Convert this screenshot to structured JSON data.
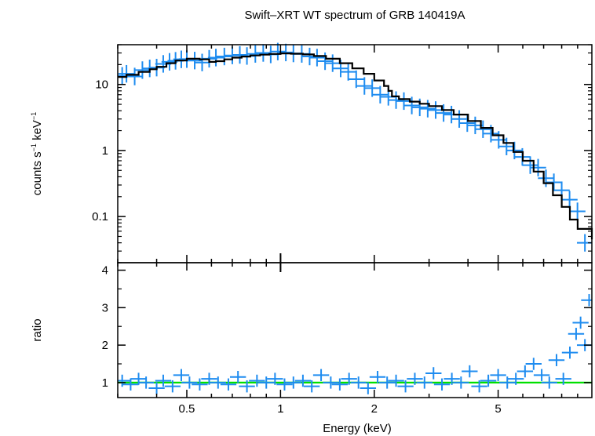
{
  "chart_data": [
    {
      "panel": "spectrum",
      "type": "scatter",
      "title": "Swift–XRT WT spectrum of GRB 140419A",
      "xlabel": "Energy (keV)",
      "ylabel_parts": [
        "counts s",
        "−1",
        " keV",
        "−1"
      ],
      "xscale": "log",
      "yscale": "log",
      "xlim": [
        0.3,
        10
      ],
      "ylim": [
        0.02,
        40
      ],
      "yticks": [
        {
          "value": 10,
          "label": "10"
        },
        {
          "value": 1,
          "label": "1"
        },
        {
          "value": 0.1,
          "label": "0.1"
        }
      ],
      "data_color": "#1e8cf0",
      "model_color": "#000000",
      "series": [
        {
          "role": "data",
          "x": [
            0.31,
            0.32,
            0.34,
            0.36,
            0.38,
            0.4,
            0.42,
            0.44,
            0.46,
            0.48,
            0.5,
            0.53,
            0.56,
            0.59,
            0.62,
            0.66,
            0.7,
            0.74,
            0.78,
            0.83,
            0.88,
            0.93,
            0.98,
            1.04,
            1.1,
            1.17,
            1.24,
            1.31,
            1.39,
            1.47,
            1.56,
            1.65,
            1.75,
            1.86,
            1.97,
            2.09,
            2.22,
            2.35,
            2.49,
            2.64,
            2.8,
            2.97,
            3.15,
            3.34,
            3.54,
            3.75,
            3.98,
            4.22,
            4.47,
            4.74,
            5.02,
            5.32,
            5.64,
            5.98,
            6.34,
            6.72,
            7.12,
            7.55,
            8.0,
            8.48,
            8.99,
            9.5
          ],
          "y": [
            13.5,
            14.5,
            13.2,
            16.5,
            17.5,
            18.0,
            20.5,
            22.0,
            22.8,
            24.0,
            24.2,
            23.0,
            21.5,
            24.5,
            25.5,
            26.5,
            27.5,
            28.0,
            27.0,
            29.0,
            30.0,
            28.5,
            31.5,
            30.5,
            29.5,
            29.0,
            26.5,
            25.5,
            22.5,
            21.0,
            17.5,
            15.5,
            12.0,
            9.5,
            8.8,
            7.0,
            6.5,
            5.8,
            5.6,
            4.8,
            4.5,
            4.3,
            4.1,
            3.7,
            3.5,
            3.0,
            2.6,
            2.4,
            2.1,
            1.8,
            1.45,
            1.15,
            1.0,
            0.8,
            0.6,
            0.55,
            0.38,
            0.33,
            0.25,
            0.18,
            0.12,
            0.04
          ]
        },
        {
          "role": "model",
          "x": [
            0.3,
            0.32,
            0.35,
            0.38,
            0.4,
            0.43,
            0.46,
            0.5,
            0.55,
            0.59,
            0.62,
            0.66,
            0.7,
            0.75,
            0.8,
            0.86,
            0.92,
            1.0,
            1.08,
            1.18,
            1.28,
            1.4,
            1.55,
            1.7,
            1.85,
            2.0,
            2.15,
            2.22,
            2.28,
            2.4,
            2.6,
            2.8,
            3.0,
            3.3,
            3.6,
            4.0,
            4.4,
            4.8,
            5.2,
            5.6,
            6.0,
            6.5,
            7.0,
            7.5,
            8.0,
            8.5,
            9.0,
            9.5,
            10.0
          ],
          "y": [
            13.0,
            14.0,
            15.5,
            17.0,
            18.5,
            21.0,
            23.0,
            24.5,
            24.0,
            22.0,
            22.5,
            24.0,
            25.5,
            26.5,
            27.5,
            28.3,
            29.0,
            29.5,
            29.2,
            28.5,
            27.0,
            24.5,
            21.0,
            17.5,
            14.5,
            11.5,
            9.5,
            8.0,
            6.6,
            6.0,
            5.5,
            5.1,
            4.7,
            4.1,
            3.5,
            2.8,
            2.2,
            1.7,
            1.3,
            0.95,
            0.7,
            0.48,
            0.32,
            0.21,
            0.14,
            0.09,
            0.065,
            0.065,
            0.045
          ]
        }
      ]
    },
    {
      "panel": "ratio",
      "type": "scatter",
      "xlabel": "Energy (keV)",
      "ylabel": "ratio",
      "xscale": "log",
      "xlim": [
        0.3,
        10
      ],
      "ylim": [
        0.6,
        4.2
      ],
      "xticks": [
        {
          "value": 0.5,
          "label": "0.5"
        },
        {
          "value": 1,
          "label": "1"
        },
        {
          "value": 2,
          "label": "2"
        },
        {
          "value": 5,
          "label": "5"
        }
      ],
      "yticks": [
        {
          "value": 1,
          "label": "1"
        },
        {
          "value": 2,
          "label": "2"
        },
        {
          "value": 3,
          "label": "3"
        },
        {
          "value": 4,
          "label": "4"
        }
      ],
      "reference_line": 1,
      "reference_color": "#00e000",
      "data_color": "#1e8cf0",
      "series": [
        {
          "role": "data",
          "x": [
            0.31,
            0.33,
            0.35,
            0.37,
            0.4,
            0.42,
            0.45,
            0.48,
            0.51,
            0.55,
            0.59,
            0.63,
            0.68,
            0.73,
            0.78,
            0.84,
            0.9,
            0.96,
            1.03,
            1.1,
            1.18,
            1.26,
            1.35,
            1.45,
            1.55,
            1.66,
            1.78,
            1.91,
            2.05,
            2.2,
            2.35,
            2.52,
            2.7,
            2.9,
            3.1,
            3.3,
            3.55,
            3.8,
            4.05,
            4.35,
            4.65,
            5.0,
            5.35,
            5.7,
            6.1,
            6.5,
            6.9,
            7.3,
            7.7,
            8.1,
            8.5,
            8.9,
            9.2,
            9.5,
            9.8
          ],
          "y": [
            1.05,
            0.95,
            1.1,
            1.0,
            0.85,
            1.05,
            0.9,
            1.2,
            1.0,
            0.95,
            1.1,
            1.0,
            0.95,
            1.15,
            0.9,
            1.05,
            1.0,
            1.1,
            0.95,
            1.0,
            1.05,
            0.9,
            1.2,
            1.0,
            0.95,
            1.1,
            1.0,
            0.85,
            1.15,
            1.0,
            1.05,
            0.9,
            1.1,
            1.0,
            1.25,
            0.95,
            1.1,
            1.0,
            1.3,
            0.9,
            1.05,
            1.2,
            1.0,
            1.1,
            1.3,
            1.5,
            1.2,
            1.0,
            1.6,
            1.1,
            1.8,
            2.3,
            2.6,
            2.0,
            3.2
          ]
        }
      ]
    }
  ]
}
